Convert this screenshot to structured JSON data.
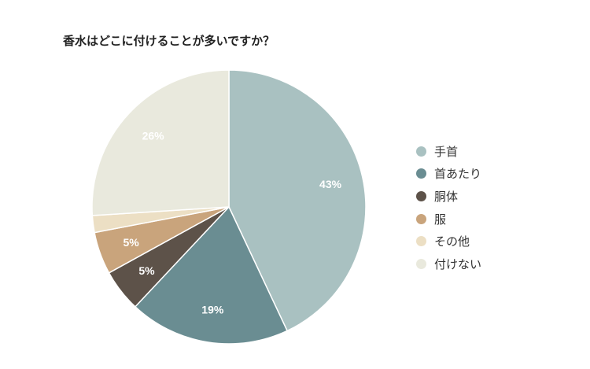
{
  "chart_data": {
    "type": "pie",
    "title": "香水はどこに付けることが多いですか？",
    "legend_position": "right",
    "slices": [
      {
        "label": "手首",
        "value": 43,
        "display": "43%",
        "color": "#a9c1c1",
        "text_color": "#ffffff"
      },
      {
        "label": "首あたり",
        "value": 19,
        "display": "19%",
        "color": "#6a8d92",
        "text_color": "#ffffff"
      },
      {
        "label": "胴体",
        "value": 5,
        "display": "5%",
        "color": "#5d5249",
        "text_color": "#ffffff"
      },
      {
        "label": "服",
        "value": 5,
        "display": "5%",
        "color": "#c9a47c",
        "text_color": "#ffffff"
      },
      {
        "label": "その他",
        "value": 2,
        "display": "",
        "color": "#ecdfc4",
        "text_color": "#ffffff"
      },
      {
        "label": "付けない",
        "value": 26,
        "display": "26%",
        "color": "#e9e9dd",
        "text_color": "#ffffff"
      }
    ]
  }
}
